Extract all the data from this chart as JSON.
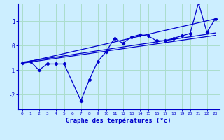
{
  "title": "",
  "xlabel": "Graphe des températures (°c)",
  "ylabel": "",
  "bg_color": "#cceeff",
  "grid_color": "#aaddcc",
  "line_color": "#0000cc",
  "xlim": [
    -0.5,
    23.5
  ],
  "ylim": [
    -2.6,
    1.7
  ],
  "xticks": [
    0,
    1,
    2,
    3,
    4,
    5,
    6,
    7,
    8,
    9,
    10,
    11,
    12,
    13,
    14,
    15,
    16,
    17,
    18,
    19,
    20,
    21,
    22,
    23
  ],
  "yticks": [
    -2,
    -1,
    0,
    1
  ],
  "main_series_x": [
    0,
    1,
    2,
    3,
    4,
    5,
    7,
    8,
    9,
    10,
    11,
    12,
    13,
    14,
    15,
    16,
    17,
    18,
    19,
    20,
    21,
    22,
    23
  ],
  "main_series_y": [
    -0.7,
    -0.65,
    -1.0,
    -0.75,
    -0.75,
    -0.75,
    -2.25,
    -1.4,
    -0.65,
    -0.25,
    0.3,
    0.1,
    0.35,
    0.45,
    0.4,
    0.2,
    0.2,
    0.3,
    0.4,
    0.5,
    1.75,
    0.55,
    1.1
  ],
  "line1_x": [
    0,
    23
  ],
  "line1_y": [
    -0.72,
    1.1
  ],
  "line2_x": [
    0,
    23
  ],
  "line2_y": [
    -0.72,
    0.42
  ],
  "line3_x": [
    0,
    23
  ],
  "line3_y": [
    -0.68,
    0.52
  ],
  "figsize": [
    3.2,
    2.0
  ],
  "dpi": 100
}
